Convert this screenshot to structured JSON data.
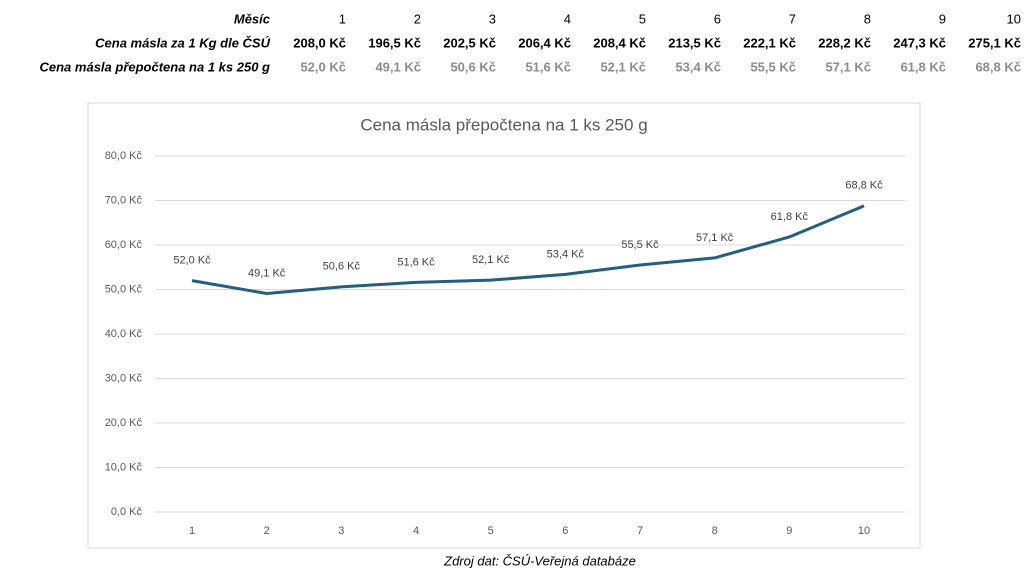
{
  "table": {
    "rows": [
      [
        "Měsíc",
        "1",
        "2",
        "3",
        "4",
        "5",
        "6",
        "7",
        "8",
        "9",
        "10"
      ],
      [
        "Cena másla za 1 Kg dle ČSÚ",
        "208,0 Kč",
        "196,5 Kč",
        "202,5 Kč",
        "206,4 Kč",
        "208,4 Kč",
        "213,5 Kč",
        "222,1 Kč",
        "228,2 Kč",
        "247,3 Kč",
        "275,1 Kč"
      ],
      [
        "Cena másla přepočtena na 1 ks 250 g",
        "52,0 Kč",
        "49,1 Kč",
        "50,6 Kč",
        "51,6 Kč",
        "52,1 Kč",
        "53,4 Kč",
        "55,5 Kč",
        "57,1 Kč",
        "61,8 Kč",
        "68,8 Kč"
      ]
    ]
  },
  "chart_data": {
    "type": "line",
    "title": "Cena másla přepočtena na 1 ks 250 g",
    "categories": [
      "1",
      "2",
      "3",
      "4",
      "5",
      "6",
      "7",
      "8",
      "9",
      "10"
    ],
    "values": [
      52.0,
      49.1,
      50.6,
      51.6,
      52.1,
      53.4,
      55.5,
      57.1,
      61.8,
      68.8
    ],
    "value_labels": [
      "52,0 Kč",
      "49,1 Kč",
      "50,6 Kč",
      "51,6 Kč",
      "52,1 Kč",
      "53,4 Kč",
      "55,5 Kč",
      "57,1 Kč",
      "61,8 Kč",
      "68,8 Kč"
    ],
    "color": "#24607e",
    "ylim": [
      0,
      80
    ],
    "yticks": [
      {
        "value": 0,
        "label": "0,0 Kč"
      },
      {
        "value": 10,
        "label": "10,0 Kč"
      },
      {
        "value": 20,
        "label": "20,0 Kč"
      },
      {
        "value": 30,
        "label": "30,0 Kč"
      },
      {
        "value": 40,
        "label": "40,0 Kč"
      },
      {
        "value": 50,
        "label": "50,0 Kč"
      },
      {
        "value": 60,
        "label": "60,0 Kč"
      },
      {
        "value": 70,
        "label": "70,0 Kč"
      },
      {
        "value": 80,
        "label": "80,0 Kč"
      }
    ],
    "grid": true
  },
  "source": "Zdroj dat: ČSÚ-Veřejná databáze"
}
